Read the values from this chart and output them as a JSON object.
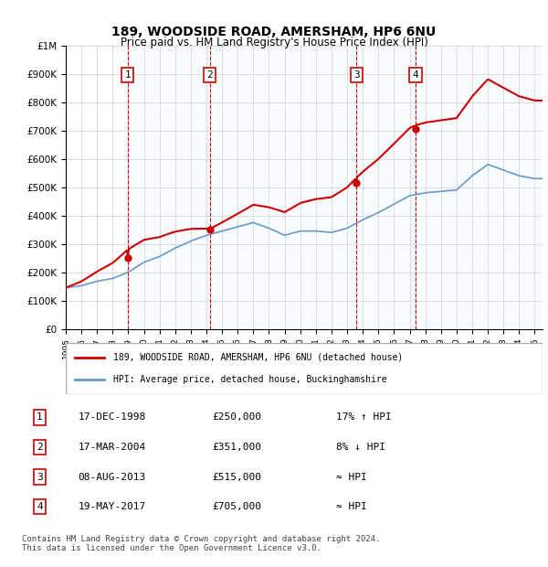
{
  "title1": "189, WOODSIDE ROAD, AMERSHAM, HP6 6NU",
  "title2": "Price paid vs. HM Land Registry's House Price Index (HPI)",
  "ylabel_ticks": [
    "£0",
    "£100K",
    "£200K",
    "£300K",
    "£400K",
    "£500K",
    "£600K",
    "£700K",
    "£800K",
    "£900K",
    "£1M"
  ],
  "ytick_values": [
    0,
    100000,
    200000,
    300000,
    400000,
    500000,
    600000,
    700000,
    800000,
    900000,
    1000000
  ],
  "xlim_start": 1995.0,
  "xlim_end": 2025.5,
  "ylim_min": 0,
  "ylim_max": 1000000,
  "sale_dates": [
    1998.96,
    2004.21,
    2013.6,
    2017.38
  ],
  "sale_prices": [
    250000,
    351000,
    515000,
    705000
  ],
  "sale_labels": [
    "1",
    "2",
    "3",
    "4"
  ],
  "legend_house": "189, WOODSIDE ROAD, AMERSHAM, HP6 6NU (detached house)",
  "legend_hpi": "HPI: Average price, detached house, Buckinghamshire",
  "table_rows": [
    [
      "1",
      "17-DEC-1998",
      "£250,000",
      "17% ↑ HPI"
    ],
    [
      "2",
      "17-MAR-2004",
      "£351,000",
      "8% ↓ HPI"
    ],
    [
      "3",
      "08-AUG-2013",
      "£515,000",
      "≈ HPI"
    ],
    [
      "4",
      "19-MAY-2017",
      "£705,000",
      "≈ HPI"
    ]
  ],
  "footnote": "Contains HM Land Registry data © Crown copyright and database right 2024.\nThis data is licensed under the Open Government Licence v3.0.",
  "house_color": "#cc0000",
  "hpi_color": "#6699cc",
  "vline_color": "#cc0000",
  "shade_color": "#ddeeff",
  "marker_color": "#cc0000",
  "box_color": "#cc0000"
}
